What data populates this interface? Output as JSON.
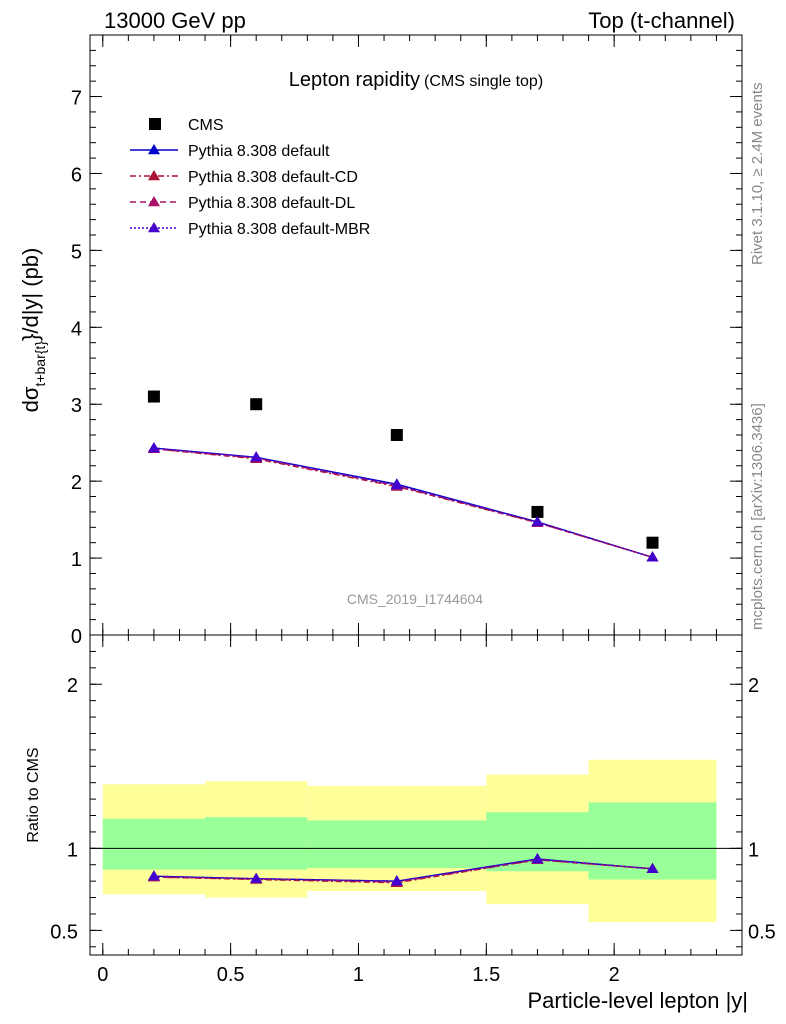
{
  "header": {
    "left": "13000 GeV pp",
    "right": "Top (t-channel)"
  },
  "side_text": {
    "rivet": "Rivet 3.1.10, ≥ 2.4M events",
    "mcplots": "mcplots.cern.ch [arXiv:1306.3436]"
  },
  "chart_data": [
    {
      "type": "scatter",
      "title": "Lepton rapidity",
      "subtitle": "(CMS single top)",
      "watermark": "CMS_2019_I1744604",
      "ylabel_prefix": "dσ",
      "ylabel_sub": "t+bar{t}",
      "ylabel_suffix": "}/d|y|  (pb)",
      "xlim": [
        -0.05,
        2.5
      ],
      "ylim": [
        0,
        7.8
      ],
      "x_ticks": [
        "0",
        "0.5",
        "1",
        "1.5",
        "2"
      ],
      "y_ticks": [
        "0",
        "1",
        "2",
        "3",
        "4",
        "5",
        "6",
        "7"
      ],
      "legend_position": "top-left",
      "x": [
        0.2,
        0.6,
        1.15,
        1.7,
        2.15
      ],
      "series": [
        {
          "name": "CMS",
          "style": "marker",
          "color": "#000000",
          "values": [
            3.1,
            3.0,
            2.6,
            1.6,
            1.2
          ]
        },
        {
          "name": "Pythia 8.308 default",
          "style": "solid",
          "color": "#0000cc",
          "values": [
            2.43,
            2.31,
            1.96,
            1.47,
            1.01
          ]
        },
        {
          "name": "Pythia 8.308 default-CD",
          "style": "dashdot",
          "color": "#aa1133",
          "values": [
            2.42,
            2.29,
            1.93,
            1.46,
            1.01
          ]
        },
        {
          "name": "Pythia 8.308 default-DL",
          "style": "dashed",
          "color": "#aa1166",
          "values": [
            2.42,
            2.3,
            1.94,
            1.46,
            1.01
          ]
        },
        {
          "name": "Pythia 8.308 default-MBR",
          "style": "dotted",
          "color": "#4400cc",
          "values": [
            2.43,
            2.31,
            1.95,
            1.47,
            1.01
          ]
        }
      ]
    },
    {
      "type": "line",
      "ylabel": "Ratio to CMS",
      "xlabel": "Particle-level lepton |y|",
      "xlim": [
        -0.05,
        2.5
      ],
      "ylim": [
        0.35,
        2.3
      ],
      "y_ticks": [
        "0.5",
        "1",
        "2"
      ],
      "bins": [
        [
          0,
          0.4
        ],
        [
          0.4,
          0.8
        ],
        [
          0.8,
          1.5
        ],
        [
          1.5,
          1.9
        ],
        [
          1.9,
          2.4
        ]
      ],
      "band_inner": [
        [
          0.87,
          1.18
        ],
        [
          0.87,
          1.19
        ],
        [
          0.88,
          1.17
        ],
        [
          0.86,
          1.22
        ],
        [
          0.81,
          1.28
        ]
      ],
      "band_outer": [
        [
          0.72,
          1.39
        ],
        [
          0.7,
          1.41
        ],
        [
          0.74,
          1.38
        ],
        [
          0.66,
          1.45
        ],
        [
          0.55,
          1.54
        ]
      ],
      "x": [
        0.2,
        0.6,
        1.15,
        1.7,
        2.15
      ],
      "series": [
        {
          "name": "Pythia 8.308 default",
          "color": "#0000cc",
          "values": [
            0.83,
            0.815,
            0.8,
            0.935,
            0.875
          ]
        },
        {
          "name": "Pythia 8.308 default-CD",
          "color": "#aa1133",
          "values": [
            0.825,
            0.81,
            0.79,
            0.93,
            0.875
          ]
        },
        {
          "name": "Pythia 8.308 default-DL",
          "color": "#aa1166",
          "values": [
            0.825,
            0.812,
            0.795,
            0.93,
            0.875
          ]
        },
        {
          "name": "Pythia 8.308 default-MBR",
          "color": "#4400cc",
          "values": [
            0.83,
            0.815,
            0.8,
            0.935,
            0.875
          ]
        }
      ]
    }
  ],
  "colors": {
    "band_inner": "#99ff99",
    "band_outer": "#ffff99"
  }
}
